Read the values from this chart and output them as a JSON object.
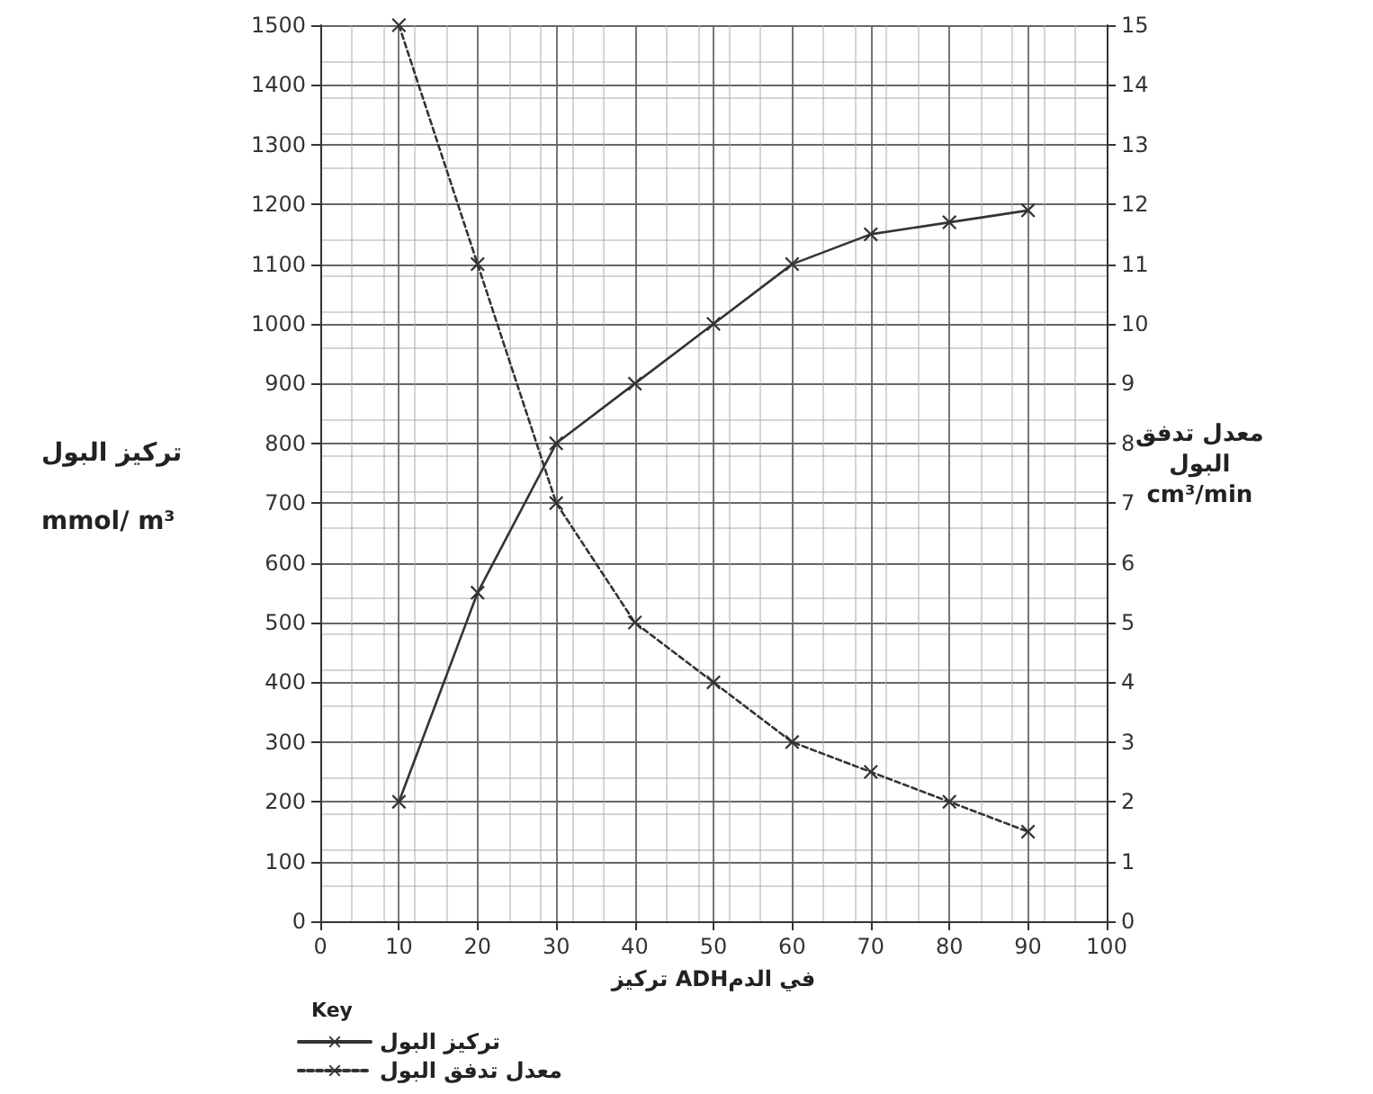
{
  "chart_data": {
    "type": "line",
    "xlabel": "تركيز ADHفي الدم",
    "ylabel": "تركيز البول\nmmol/ m³",
    "y2label": "معدل تدفق\nالبول\ncm³/min",
    "legend_title": "Key",
    "x": [
      10,
      20,
      30,
      40,
      50,
      60,
      70,
      80,
      90
    ],
    "series": [
      {
        "name": "تركيز البول",
        "color": "#333333",
        "line_style": "solid",
        "values": [
          200,
          550,
          800,
          900,
          1000,
          1100,
          1150,
          1170,
          1190
        ]
      },
      {
        "name": "معدل تدفق البول",
        "color": "#333333",
        "line_style": "dashed",
        "axis": "y2",
        "values": [
          15,
          11,
          7,
          5,
          4,
          3,
          2.5,
          2,
          1.5
        ]
      }
    ],
    "xlim": [
      0,
      100
    ],
    "xticks": [
      0,
      10,
      20,
      30,
      40,
      50,
      60,
      70,
      80,
      90,
      100
    ],
    "ylim": [
      0,
      1500
    ],
    "yticks": [
      0,
      100,
      200,
      300,
      400,
      500,
      600,
      700,
      800,
      900,
      1000,
      1100,
      1200,
      1300,
      1400,
      1500
    ],
    "y2lim": [
      0,
      15
    ],
    "y2ticks": [
      0,
      1,
      2,
      3,
      4,
      5,
      6,
      7,
      8,
      9,
      10,
      11,
      12,
      13,
      14,
      15
    ],
    "grid": true,
    "legend": "bottom left",
    "marker": "cross"
  }
}
